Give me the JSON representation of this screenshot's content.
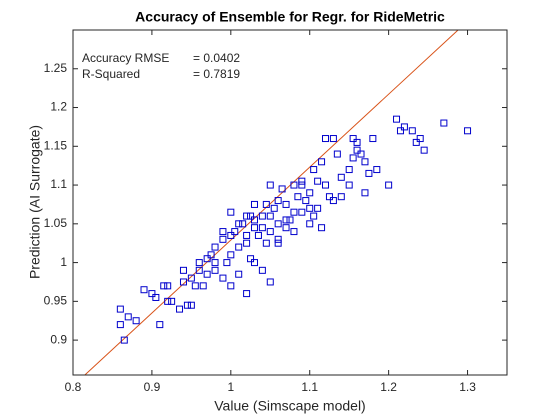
{
  "chart_data": {
    "type": "scatter",
    "title": "Accuracy of Ensemble for Regr. for RideMetric",
    "xlabel": "Value (Simscape model)",
    "ylabel": "Prediction (AI Surrogate)",
    "annotations": [
      {
        "label": "Accuracy RMSE",
        "text": "= 0.0402"
      },
      {
        "label": "R-Squared",
        "text": "= 0.7819"
      }
    ],
    "xlim": [
      0.8,
      1.35
    ],
    "ylim": [
      0.855,
      1.3
    ],
    "xticks": [
      0.8,
      0.9,
      1,
      1.1,
      1.2,
      1.3
    ],
    "yticks": [
      0.9,
      0.95,
      1,
      1.05,
      1.1,
      1.15,
      1.2,
      1.25
    ],
    "color": "#0000cc",
    "reference_line": {
      "x": [
        0.815,
        1.288
      ],
      "y": [
        0.855,
        1.3
      ],
      "color": "#d95319"
    },
    "x": [
      0.86,
      0.86,
      0.865,
      0.87,
      0.88,
      0.89,
      0.9,
      0.905,
      0.91,
      0.915,
      0.92,
      0.925,
      0.935,
      0.94,
      0.945,
      0.95,
      0.95,
      0.955,
      0.96,
      0.96,
      0.965,
      0.97,
      0.975,
      0.98,
      0.98,
      0.99,
      0.99,
      0.995,
      1.0,
      1.0,
      1.0,
      1.005,
      1.01,
      1.01,
      1.015,
      1.02,
      1.02,
      1.02,
      1.025,
      1.03,
      1.03,
      1.03,
      1.035,
      1.04,
      1.04,
      1.045,
      1.05,
      1.05,
      1.05,
      1.055,
      1.06,
      1.06,
      1.065,
      1.07,
      1.07,
      1.075,
      1.08,
      1.08,
      1.085,
      1.09,
      1.09,
      1.095,
      1.1,
      1.1,
      1.105,
      1.105,
      1.11,
      1.115,
      1.115,
      1.12,
      1.125,
      1.13,
      1.135,
      1.14,
      1.15,
      1.15,
      1.155,
      1.16,
      1.165,
      1.17,
      1.17,
      1.18,
      1.185,
      1.2,
      1.21,
      1.215,
      1.22,
      1.23,
      1.235,
      1.24,
      1.245,
      1.27,
      1.3,
      1.13,
      1.155,
      1.16,
      1.175,
      1.06,
      1.03,
      1.0,
      0.98,
      0.97,
      0.92,
      0.94,
      1.05,
      1.08,
      1.09,
      1.12,
      1.14,
      1.02,
      1.04,
      1.06,
      1.07,
      1.1,
      1.11,
      1.01,
      0.99,
      1.025,
      1.045
    ],
    "values": [
      0.94,
      0.92,
      0.9,
      0.93,
      0.925,
      0.965,
      0.96,
      0.955,
      0.92,
      0.97,
      0.97,
      0.95,
      0.94,
      0.975,
      0.945,
      0.945,
      0.98,
      0.97,
      0.99,
      1.0,
      0.97,
      0.985,
      1.01,
      0.99,
      1.02,
      1.03,
      0.98,
      1.0,
      1.035,
      1.01,
      1.065,
      1.04,
      1.02,
      0.985,
      1.05,
      1.06,
      1.025,
      0.96,
      1.005,
      1.045,
      1.0,
      1.075,
      1.035,
      0.99,
      1.06,
      1.025,
      1.04,
      1.06,
      0.975,
      1.07,
      1.05,
      1.03,
      1.095,
      1.075,
      1.045,
      1.055,
      1.065,
      1.04,
      1.085,
      1.065,
      1.1,
      1.08,
      1.09,
      1.07,
      1.06,
      1.12,
      1.105,
      1.13,
      1.045,
      1.1,
      1.085,
      1.08,
      1.14,
      1.11,
      1.12,
      1.1,
      1.135,
      1.155,
      1.14,
      1.13,
      1.09,
      1.16,
      1.12,
      1.1,
      1.185,
      1.17,
      1.175,
      1.17,
      1.155,
      1.16,
      1.145,
      1.18,
      1.17,
      1.16,
      1.16,
      1.145,
      1.115,
      1.025,
      1.055,
      0.97,
      1.0,
      1.005,
      0.95,
      0.99,
      1.1,
      1.1,
      1.105,
      1.16,
      1.085,
      1.035,
      1.045,
      1.08,
      1.055,
      1.05,
      1.07,
      1.05,
      1.04,
      1.06,
      1.075
    ]
  }
}
